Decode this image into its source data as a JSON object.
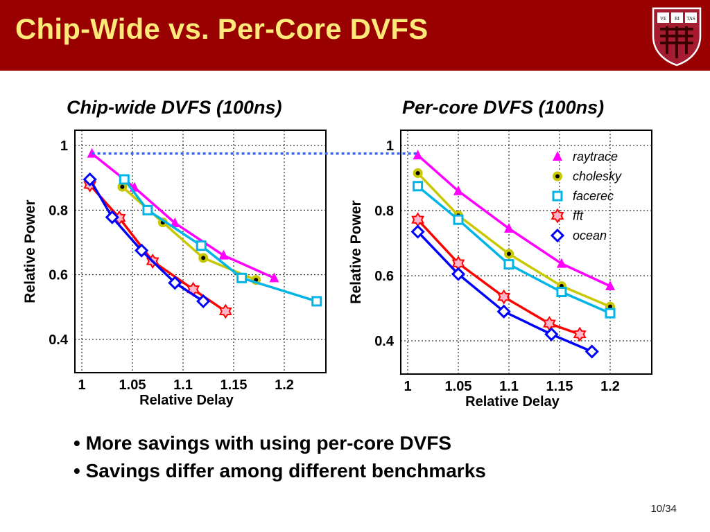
{
  "slide": {
    "title": "Chip-Wide vs. Per-Core DVFS",
    "page": "10/34",
    "bullets": [
      "More savings with using per-core DVFS",
      "Savings differ among different benchmarks"
    ],
    "logo": {
      "icon": "harvard-shield-icon",
      "text": [
        "VE",
        "RI",
        "TAS"
      ],
      "colors": {
        "shield": "#a51c30",
        "header": "#990000",
        "title": "#ffe97a"
      }
    }
  },
  "chart_data": [
    {
      "type": "line",
      "title": "Chip-wide DVFS (100ns)",
      "xlabel": "Relative Delay",
      "ylabel": "Relative Power",
      "xlim": [
        1.0,
        1.24
      ],
      "ylim": [
        0.4,
        1.0
      ],
      "xticks": [
        "1",
        "1.05",
        "1.1",
        "1.15",
        "1.2"
      ],
      "yticks": [
        "1",
        "0.8",
        "0.6",
        "0.4"
      ],
      "grid": true,
      "series": [
        {
          "name": "raytrace",
          "color": "#ff00ff",
          "marker": "triangle",
          "points": [
            [
              1.01,
              0.975
            ],
            [
              1.052,
              0.87
            ],
            [
              1.092,
              0.76
            ],
            [
              1.14,
              0.66
            ],
            [
              1.19,
              0.59
            ]
          ]
        },
        {
          "name": "cholesky",
          "color": "#c8c800",
          "marker": "dot",
          "points": [
            [
              1.04,
              0.872
            ],
            [
              1.08,
              0.762
            ],
            [
              1.12,
              0.652
            ],
            [
              1.172,
              0.584
            ]
          ]
        },
        {
          "name": "facerec",
          "color": "#00b4e6",
          "marker": "square",
          "points": [
            [
              1.042,
              0.895
            ],
            [
              1.065,
              0.8
            ],
            [
              1.118,
              0.69
            ],
            [
              1.158,
              0.59
            ],
            [
              1.232,
              0.518
            ]
          ]
        },
        {
          "name": "fft",
          "color": "#ff0000",
          "marker": "star",
          "points": [
            [
              1.008,
              0.878
            ],
            [
              1.037,
              0.776
            ],
            [
              1.07,
              0.642
            ],
            [
              1.11,
              0.555
            ],
            [
              1.142,
              0.487
            ]
          ]
        },
        {
          "name": "ocean",
          "color": "#0000ff",
          "marker": "diamond",
          "points": [
            [
              1.008,
              0.895
            ],
            [
              1.03,
              0.778
            ],
            [
              1.059,
              0.675
            ],
            [
              1.092,
              0.575
            ],
            [
              1.12,
              0.518
            ]
          ]
        }
      ],
      "reference_line": {
        "y": 0.975,
        "color": "#3366ff",
        "style": "dotted"
      }
    },
    {
      "type": "line",
      "title": "Per-core DVFS (100ns)",
      "xlabel": "Relative Delay",
      "ylabel": "Relative Power",
      "xlim": [
        1.0,
        1.24
      ],
      "ylim": [
        0.4,
        1.0
      ],
      "xticks": [
        "1",
        "1.05",
        "1.1",
        "1.15",
        "1.2"
      ],
      "yticks": [
        "1",
        "0.8",
        "0.6",
        "0.4"
      ],
      "grid": true,
      "legend": "top-right",
      "series": [
        {
          "name": "raytrace",
          "color": "#ff00ff",
          "marker": "triangle",
          "points": [
            [
              1.01,
              0.97
            ],
            [
              1.05,
              0.86
            ],
            [
              1.1,
              0.745
            ],
            [
              1.152,
              0.637
            ],
            [
              1.2,
              0.568
            ]
          ]
        },
        {
          "name": "cholesky",
          "color": "#c8c800",
          "marker": "dot",
          "points": [
            [
              1.01,
              0.915
            ],
            [
              1.05,
              0.785
            ],
            [
              1.1,
              0.667
            ],
            [
              1.152,
              0.568
            ],
            [
              1.2,
              0.505
            ]
          ]
        },
        {
          "name": "facerec",
          "color": "#00b4e6",
          "marker": "square",
          "points": [
            [
              1.01,
              0.875
            ],
            [
              1.05,
              0.772
            ],
            [
              1.1,
              0.635
            ],
            [
              1.152,
              0.55
            ],
            [
              1.2,
              0.485
            ]
          ]
        },
        {
          "name": "fft",
          "color": "#ff0000",
          "marker": "star",
          "points": [
            [
              1.01,
              0.772
            ],
            [
              1.05,
              0.638
            ],
            [
              1.095,
              0.535
            ],
            [
              1.14,
              0.453
            ],
            [
              1.17,
              0.42
            ]
          ]
        },
        {
          "name": "ocean",
          "color": "#0000ff",
          "marker": "diamond",
          "points": [
            [
              1.01,
              0.735
            ],
            [
              1.05,
              0.605
            ],
            [
              1.095,
              0.49
            ],
            [
              1.142,
              0.42
            ],
            [
              1.182,
              0.367
            ]
          ]
        }
      ]
    }
  ]
}
